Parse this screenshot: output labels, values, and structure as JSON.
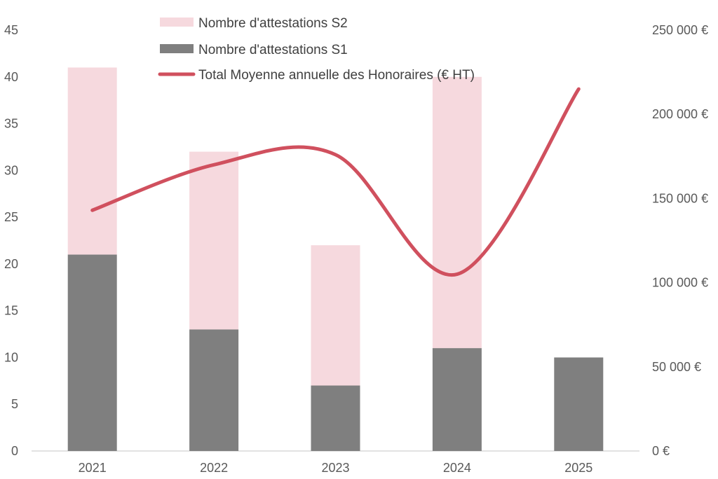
{
  "chart_data": {
    "type": "bar",
    "stacked": true,
    "categories": [
      "2021",
      "2022",
      "2023",
      "2024",
      "2025"
    ],
    "series": [
      {
        "name": "Nombre d'attestations S1",
        "kind": "bar",
        "axis": "left",
        "color": "#7f7f7f",
        "values": [
          21,
          13,
          7,
          11,
          10
        ]
      },
      {
        "name": "Nombre d'attestations S2",
        "kind": "bar",
        "axis": "left",
        "color": "#f6d9de",
        "values": [
          20,
          19,
          15,
          29,
          null
        ]
      },
      {
        "name": "Total Moyenne annuelle des Honoraires (€ HT)",
        "kind": "line",
        "smooth": true,
        "axis": "right",
        "color": "#d0505e",
        "values": [
          143000,
          170000,
          176000,
          105000,
          215000
        ]
      }
    ],
    "y_left": {
      "min": 0,
      "max": 45,
      "step": 5,
      "ticks": [
        "0",
        "5",
        "10",
        "15",
        "20",
        "25",
        "30",
        "35",
        "40",
        "45"
      ]
    },
    "y_right": {
      "min": 0,
      "max": 250000,
      "step": 50000,
      "ticks": [
        "0 €",
        "50 000 €",
        "100 000 €",
        "150 000 €",
        "200 000 €",
        "250 000 €"
      ]
    },
    "legend": {
      "placement": "top-center",
      "entries": [
        "Nombre d'attestations S2",
        "Nombre d'attestations S1",
        "Total Moyenne annuelle des Honoraires (€ HT)"
      ]
    },
    "grid": false
  }
}
